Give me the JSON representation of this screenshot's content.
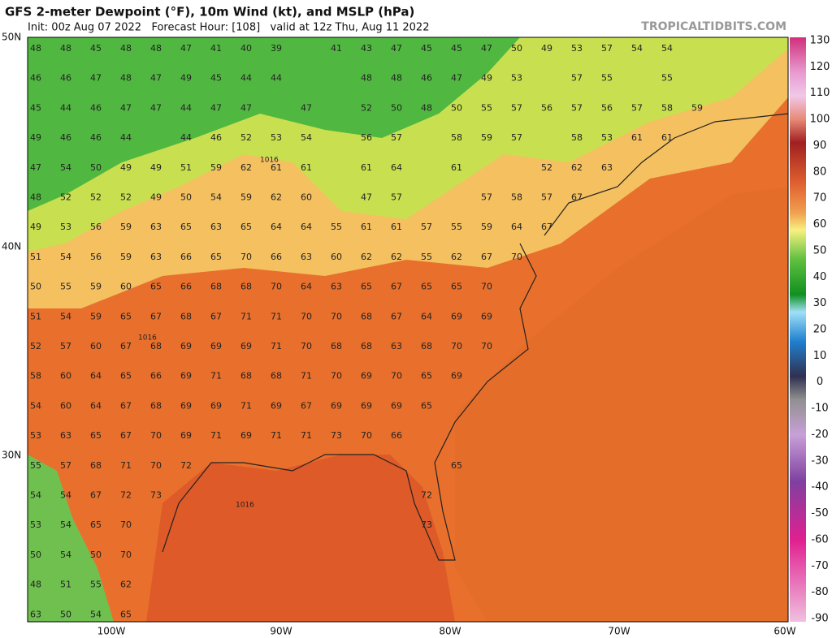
{
  "header": {
    "title": "GFS 2-meter Dewpoint (°F), 10m Wind (kt), and MSLP (hPa)",
    "subtitle": "Init: 00z Aug 07 2022   Forecast Hour: [108]   valid at 12z Thu, Aug 11 2022",
    "watermark": "TROPICALTIDBITS.COM"
  },
  "map": {
    "lat_labels": [
      "50N",
      "40N",
      "30N"
    ],
    "lon_labels": [
      "100W",
      "90W",
      "80W",
      "70W",
      "60W"
    ],
    "isobar_labels": [
      "1016",
      "1016",
      "1016"
    ],
    "station_rows": [
      [
        48,
        48,
        45,
        48,
        48,
        47,
        41,
        40,
        39,
        null,
        41,
        43,
        47,
        45,
        45,
        47,
        50,
        49,
        53,
        57,
        54,
        54
      ],
      [
        46,
        46,
        47,
        48,
        47,
        49,
        45,
        44,
        44,
        null,
        null,
        48,
        48,
        46,
        47,
        49,
        53,
        null,
        57,
        55,
        null,
        55
      ],
      [
        45,
        44,
        46,
        47,
        47,
        44,
        47,
        47,
        null,
        47,
        null,
        52,
        50,
        48,
        50,
        55,
        57,
        56,
        57,
        56,
        57,
        58,
        59
      ],
      [
        49,
        46,
        46,
        44,
        null,
        44,
        46,
        52,
        53,
        54,
        null,
        56,
        57,
        null,
        58,
        59,
        57,
        null,
        58,
        53,
        61,
        61
      ],
      [
        47,
        54,
        50,
        49,
        49,
        51,
        59,
        62,
        61,
        61,
        null,
        61,
        64,
        null,
        61,
        null,
        null,
        52,
        62,
        63
      ],
      [
        48,
        52,
        52,
        52,
        49,
        50,
        54,
        59,
        62,
        60,
        null,
        47,
        57,
        null,
        null,
        57,
        58,
        57,
        67
      ],
      [
        49,
        53,
        56,
        59,
        63,
        65,
        63,
        65,
        64,
        64,
        55,
        61,
        61,
        57,
        55,
        59,
        64,
        67
      ],
      [
        51,
        54,
        56,
        59,
        63,
        66,
        65,
        70,
        66,
        63,
        60,
        62,
        62,
        55,
        62,
        67,
        70
      ],
      [
        50,
        55,
        59,
        60,
        65,
        66,
        68,
        68,
        70,
        64,
        63,
        65,
        67,
        65,
        65,
        70
      ],
      [
        51,
        54,
        59,
        65,
        67,
        68,
        67,
        71,
        71,
        70,
        70,
        68,
        67,
        64,
        69,
        69
      ],
      [
        52,
        57,
        60,
        67,
        68,
        69,
        69,
        69,
        71,
        70,
        68,
        68,
        63,
        68,
        70,
        70
      ],
      [
        58,
        60,
        64,
        65,
        66,
        69,
        71,
        68,
        68,
        71,
        70,
        69,
        70,
        65,
        69
      ],
      [
        54,
        60,
        64,
        67,
        68,
        69,
        69,
        71,
        69,
        67,
        69,
        69,
        69,
        65
      ],
      [
        53,
        63,
        65,
        67,
        70,
        69,
        71,
        69,
        71,
        71,
        73,
        70,
        66
      ],
      [
        55,
        57,
        68,
        71,
        70,
        72,
        null,
        null,
        null,
        null,
        null,
        null,
        null,
        null,
        65
      ],
      [
        54,
        54,
        67,
        72,
        73,
        null,
        null,
        null,
        null,
        null,
        null,
        null,
        null,
        72
      ],
      [
        53,
        54,
        65,
        70,
        null,
        null,
        null,
        null,
        null,
        null,
        null,
        null,
        null,
        73
      ],
      [
        50,
        54,
        50,
        70
      ],
      [
        48,
        51,
        55,
        62
      ],
      [
        63,
        50,
        54,
        65
      ]
    ]
  },
  "colorbar": {
    "ticks": [
      130,
      120,
      110,
      100,
      90,
      80,
      70,
      60,
      50,
      40,
      30,
      20,
      10,
      0,
      -10,
      -20,
      -30,
      -40,
      -50,
      -60,
      -70,
      -80,
      -90
    ]
  }
}
